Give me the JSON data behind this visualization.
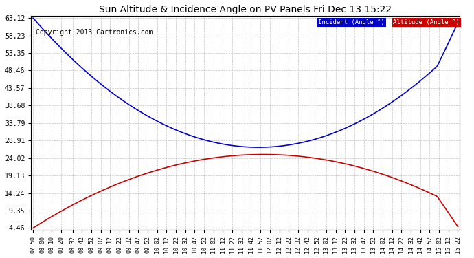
{
  "title": "Sun Altitude & Incidence Angle on PV Panels Fri Dec 13 15:22",
  "copyright": "Copyright 2013 Cartronics.com",
  "legend_incident": "Incident (Angle °)",
  "legend_altitude": "Altitude (Angle °)",
  "yticks": [
    4.46,
    9.35,
    14.24,
    19.13,
    24.02,
    28.91,
    33.79,
    38.68,
    43.57,
    48.46,
    53.35,
    58.23,
    63.12
  ],
  "xtick_labels": [
    "07:50",
    "08:00",
    "08:10",
    "08:20",
    "08:32",
    "08:42",
    "08:52",
    "09:02",
    "09:12",
    "09:22",
    "09:32",
    "09:42",
    "09:52",
    "10:02",
    "10:12",
    "10:22",
    "10:32",
    "10:42",
    "10:52",
    "11:02",
    "11:12",
    "11:22",
    "11:32",
    "11:42",
    "11:52",
    "12:02",
    "12:12",
    "12:22",
    "12:32",
    "12:42",
    "12:52",
    "13:02",
    "13:12",
    "13:22",
    "13:32",
    "13:42",
    "13:52",
    "14:02",
    "14:12",
    "14:22",
    "14:32",
    "14:42",
    "14:52",
    "15:02",
    "15:12",
    "15:22"
  ],
  "incident_color": "#0000cc",
  "altitude_color": "#cc0000",
  "background_color": "#ffffff",
  "grid_color": "#aaaaaa",
  "legend_incident_bg": "#0000cc",
  "legend_altitude_bg": "#cc0000"
}
